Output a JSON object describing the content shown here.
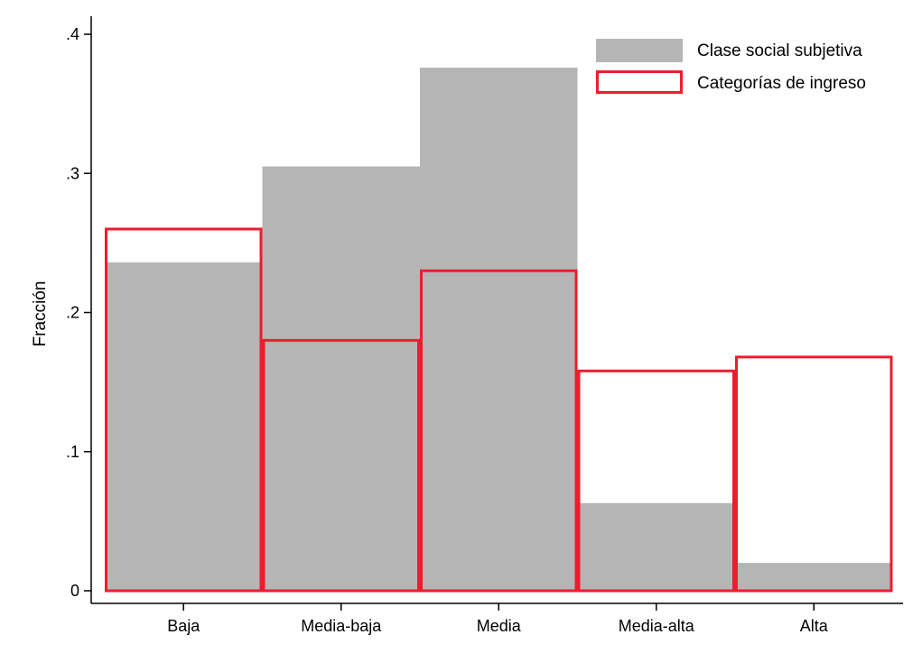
{
  "chart_data": {
    "type": "bar",
    "categories": [
      "Baja",
      "Media-baja",
      "Media",
      "Media-alta",
      "Alta"
    ],
    "series": [
      {
        "name": "Clase social subjetiva",
        "values": [
          0.236,
          0.305,
          0.376,
          0.063,
          0.02
        ],
        "style": "filled",
        "color": "#b5b5b5"
      },
      {
        "name": "Categorías de ingreso",
        "values": [
          0.26,
          0.18,
          0.23,
          0.158,
          0.168
        ],
        "style": "outline",
        "color": "#ee1c2e"
      }
    ],
    "ylabel": "Fracción",
    "xlabel": "",
    "ylim": [
      0,
      0.4
    ],
    "yticks": [
      0,
      0.1,
      0.2,
      0.3,
      0.4
    ],
    "ytick_labels": [
      "0",
      ".1",
      ".2",
      ".3",
      ".4"
    ],
    "legend_position": "top-right",
    "grid": false
  }
}
